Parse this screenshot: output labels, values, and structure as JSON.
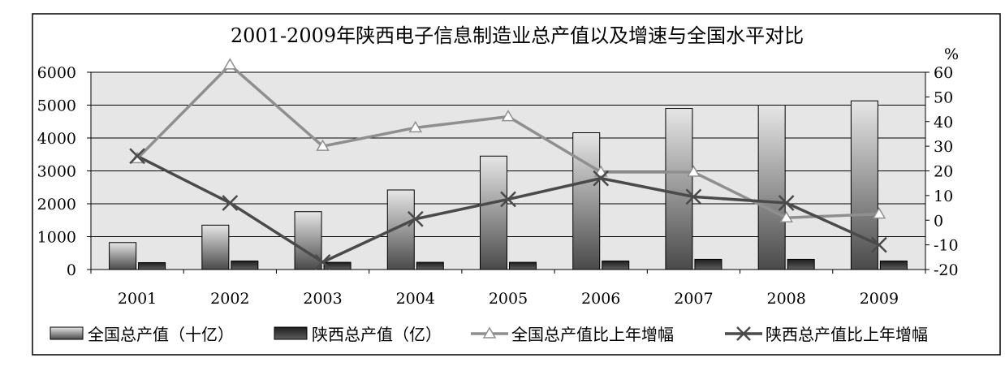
{
  "chart_data": {
    "type": "bar",
    "title": "2001-2009年陕西电子信息制造业总产值以及增速与全国水平对比",
    "categories": [
      "2001",
      "2002",
      "2003",
      "2004",
      "2005",
      "2006",
      "2007",
      "2008",
      "2009"
    ],
    "y_left": {
      "ticks": [
        "0",
        "1000",
        "2000",
        "3000",
        "4000",
        "5000",
        "6000"
      ],
      "ylim": [
        0,
        6000
      ]
    },
    "y_right": {
      "unit": "%",
      "ticks": [
        "-20",
        "-10",
        "0",
        "10",
        "20",
        "30",
        "40",
        "50",
        "60"
      ],
      "ylim": [
        -20,
        60
      ]
    },
    "grid": true,
    "legend_position": "bottom",
    "series": [
      {
        "name": "全国总产值（十亿）",
        "kind": "bar",
        "axis": "left",
        "color": "#7a7a7a",
        "values": [
          820,
          1350,
          1760,
          2420,
          3450,
          4160,
          4900,
          5000,
          5130
        ]
      },
      {
        "name": "陕西总产值（亿）",
        "kind": "bar",
        "axis": "left",
        "color": "#3a3a3a",
        "values": [
          210,
          260,
          220,
          220,
          220,
          260,
          310,
          310,
          260
        ]
      },
      {
        "name": "全国总产值比上年增幅",
        "kind": "line",
        "marker": "triangle",
        "axis": "right",
        "color": "#8f8f8f",
        "values": [
          25,
          63,
          30,
          37.5,
          42,
          19.5,
          19.5,
          1,
          2.5
        ]
      },
      {
        "name": "陕西总产值比上年增幅",
        "kind": "line",
        "marker": "x",
        "axis": "right",
        "color": "#4a4a4a",
        "values": [
          26,
          7,
          -17,
          0.5,
          8.5,
          17,
          9.5,
          7,
          -10
        ]
      }
    ]
  }
}
